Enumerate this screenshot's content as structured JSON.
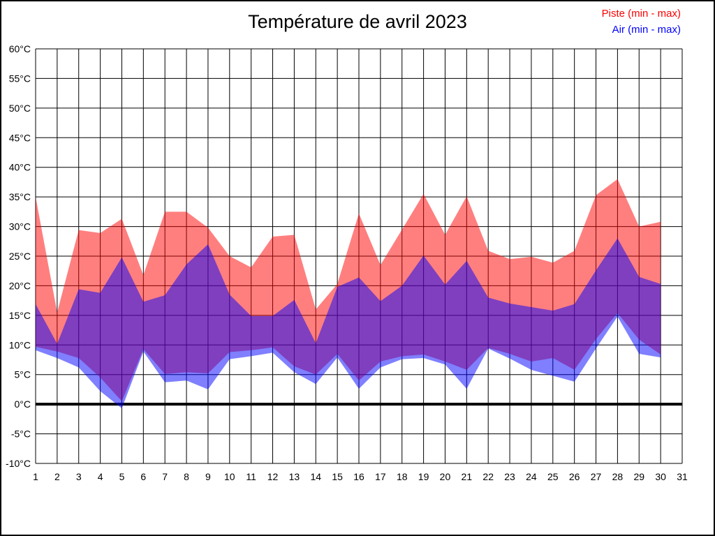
{
  "chart_data": {
    "type": "area",
    "title": "Température de avril 2023",
    "xlabel": "",
    "ylabel": "",
    "ylim": [
      -10,
      60
    ],
    "ytick_step": 5,
    "ytick_suffix": "°C",
    "xticks": [
      1,
      2,
      3,
      4,
      5,
      6,
      7,
      8,
      9,
      10,
      11,
      12,
      13,
      14,
      15,
      16,
      17,
      18,
      19,
      20,
      21,
      22,
      23,
      24,
      25,
      26,
      27,
      28,
      29,
      30,
      31
    ],
    "x": [
      1,
      2,
      3,
      4,
      5,
      6,
      7,
      8,
      9,
      10,
      11,
      12,
      13,
      14,
      15,
      16,
      17,
      18,
      19,
      20,
      21,
      22,
      23,
      24,
      25,
      26,
      27,
      28,
      29,
      30
    ],
    "grid": true,
    "grid_color": "#000000",
    "background": "#ffffff",
    "zero_line": 0,
    "fill_opacity": 0.5,
    "legend_position": "top-right",
    "series": [
      {
        "name": "Piste (min - max)",
        "band_name": "piste-band",
        "color": "#ff0000",
        "min": [
          9.7,
          8.9,
          7.8,
          4.5,
          0.5,
          9.3,
          5.1,
          5.4,
          5.2,
          8.8,
          9.1,
          9.6,
          6.4,
          5.0,
          8.5,
          4.0,
          7.2,
          8.1,
          8.4,
          7.2,
          5.8,
          9.5,
          8.5,
          7.2,
          7.8,
          5.8,
          11.0,
          15.4,
          10.9,
          8.4
        ],
        "max": [
          35.0,
          15.5,
          29.4,
          28.9,
          31.3,
          21.8,
          32.5,
          32.5,
          29.8,
          25.0,
          23.1,
          28.3,
          28.6,
          16.0,
          20.3,
          32.2,
          23.5,
          29.5,
          35.5,
          28.6,
          35.1,
          25.9,
          24.5,
          24.9,
          23.9,
          25.9,
          35.3,
          38.0,
          30.0,
          30.8
        ]
      },
      {
        "name": "Air (min - max)",
        "band_name": "air-band",
        "color": "#0000ff",
        "min": [
          9.1,
          7.8,
          6.2,
          2.2,
          -0.7,
          8.9,
          3.7,
          4.0,
          2.5,
          7.6,
          8.1,
          8.7,
          5.4,
          3.4,
          7.9,
          2.6,
          6.2,
          7.6,
          7.8,
          6.7,
          2.6,
          9.4,
          7.7,
          5.8,
          4.8,
          3.8,
          9.4,
          14.8,
          8.5,
          7.9
        ],
        "max": [
          16.9,
          10.2,
          19.4,
          18.8,
          24.8,
          17.3,
          18.4,
          23.6,
          27.0,
          18.5,
          14.9,
          14.9,
          17.6,
          10.3,
          19.8,
          21.4,
          17.4,
          20.0,
          25.1,
          20.2,
          24.2,
          18.0,
          17.0,
          16.4,
          15.8,
          16.9,
          22.6,
          28.0,
          21.5,
          20.3
        ]
      }
    ]
  }
}
